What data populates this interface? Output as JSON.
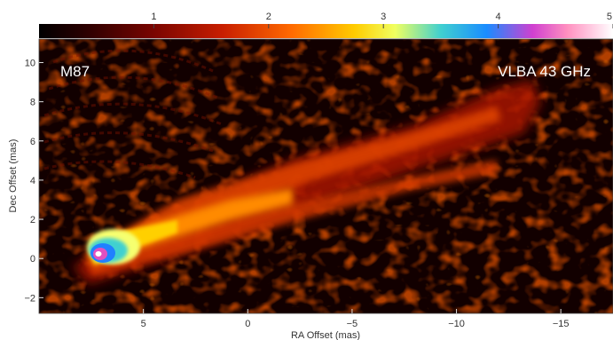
{
  "chart_data": {
    "type": "heatmap",
    "title": "",
    "source_label": "M87",
    "instrument_label": "VLBA 43 GHz",
    "xlabel": "RA Offset (mas)",
    "ylabel": "Dec Offset (mas)",
    "xlim": [
      10,
      -17.5
    ],
    "ylim": [
      -2.8,
      11.2
    ],
    "x_ticks": [
      5,
      0,
      -5,
      -10,
      -15
    ],
    "x_tick_labels": [
      "5",
      "0",
      "−5",
      "−10",
      "−15"
    ],
    "y_ticks": [
      -2,
      0,
      2,
      4,
      6,
      8,
      10
    ],
    "y_tick_labels": [
      "−2",
      "0",
      "2",
      "4",
      "6",
      "8",
      "10"
    ],
    "colorbar": {
      "ticks": [
        1,
        2,
        3,
        4,
        5
      ],
      "tick_labels": [
        "1",
        "2",
        "3",
        "4",
        "5"
      ],
      "range": [
        0,
        5
      ],
      "colormap": [
        "#000000",
        "#3a0000",
        "#8a0800",
        "#d82a00",
        "#ff7a00",
        "#ffd000",
        "#ffff80",
        "#30c8e0",
        "#2070ff",
        "#e040c0",
        "#ffffff"
      ]
    },
    "features": {
      "core_position": [
        6.8,
        0.0
      ],
      "jet_direction": "west-northwest",
      "jet_extent_mas": 18
    },
    "grid": false
  }
}
